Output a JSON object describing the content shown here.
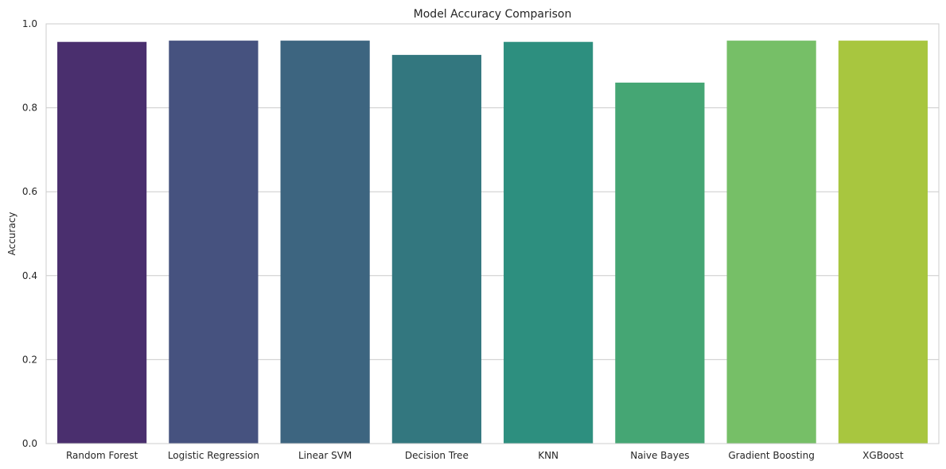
{
  "chart_data": {
    "type": "bar",
    "title": "Model Accuracy Comparison",
    "xlabel": "",
    "ylabel": "Accuracy",
    "categories": [
      "Random Forest",
      "Logistic Regression",
      "Linear SVM",
      "Decision Tree",
      "KNN",
      "Naive Bayes",
      "Gradient Boosting",
      "XGBoost"
    ],
    "values": [
      0.957,
      0.96,
      0.96,
      0.926,
      0.957,
      0.86,
      0.96,
      0.96
    ],
    "colors": [
      "#4a2f6e",
      "#46527f",
      "#3d6580",
      "#33777f",
      "#2d8f7f",
      "#45a674",
      "#76bf67",
      "#a8c63f"
    ],
    "ylim": [
      0,
      1.0
    ],
    "yticks": [
      0.0,
      0.2,
      0.4,
      0.6,
      0.8,
      1.0
    ],
    "ytick_labels": [
      "0.0",
      "0.2",
      "0.4",
      "0.6",
      "0.8",
      "1.0"
    ],
    "grid": "horizontal",
    "legend": "none"
  }
}
